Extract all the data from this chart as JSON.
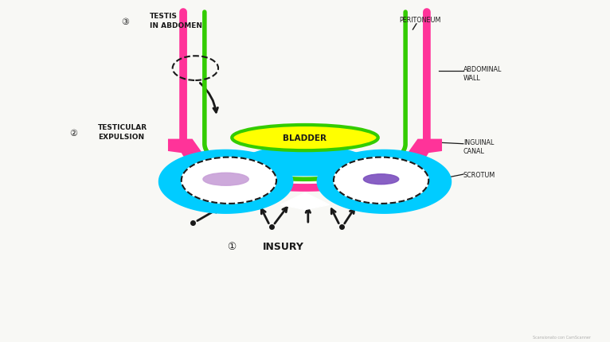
{
  "bg_color": "#FAFAFA",
  "labels": {
    "testis_in_abdomen": "TESTIS\nIN ABDOMEN",
    "peritoneum": "PERITONEUM",
    "abdominal_wall": "ABDOMINAL\nWALL",
    "testicular_expulsion": "TESTICULAR\nEXPULSION",
    "bladder": "BLADDER",
    "inguinal_canal": "INGUINAL\nCANAL",
    "scrotum": "SCROTUM",
    "injury": "INSURY",
    "scanner": "Scansionato con CamScanner"
  },
  "colors": {
    "pink": "#FF3399",
    "green": "#33CC00",
    "cyan": "#00CCFF",
    "yellow": "#FFFF00",
    "purple_light": "#C8A0D8",
    "purple_dark": "#7B4FBE",
    "black": "#1a1a1a",
    "white": "#FFFFFF",
    "bg": "#F8F8F5"
  }
}
